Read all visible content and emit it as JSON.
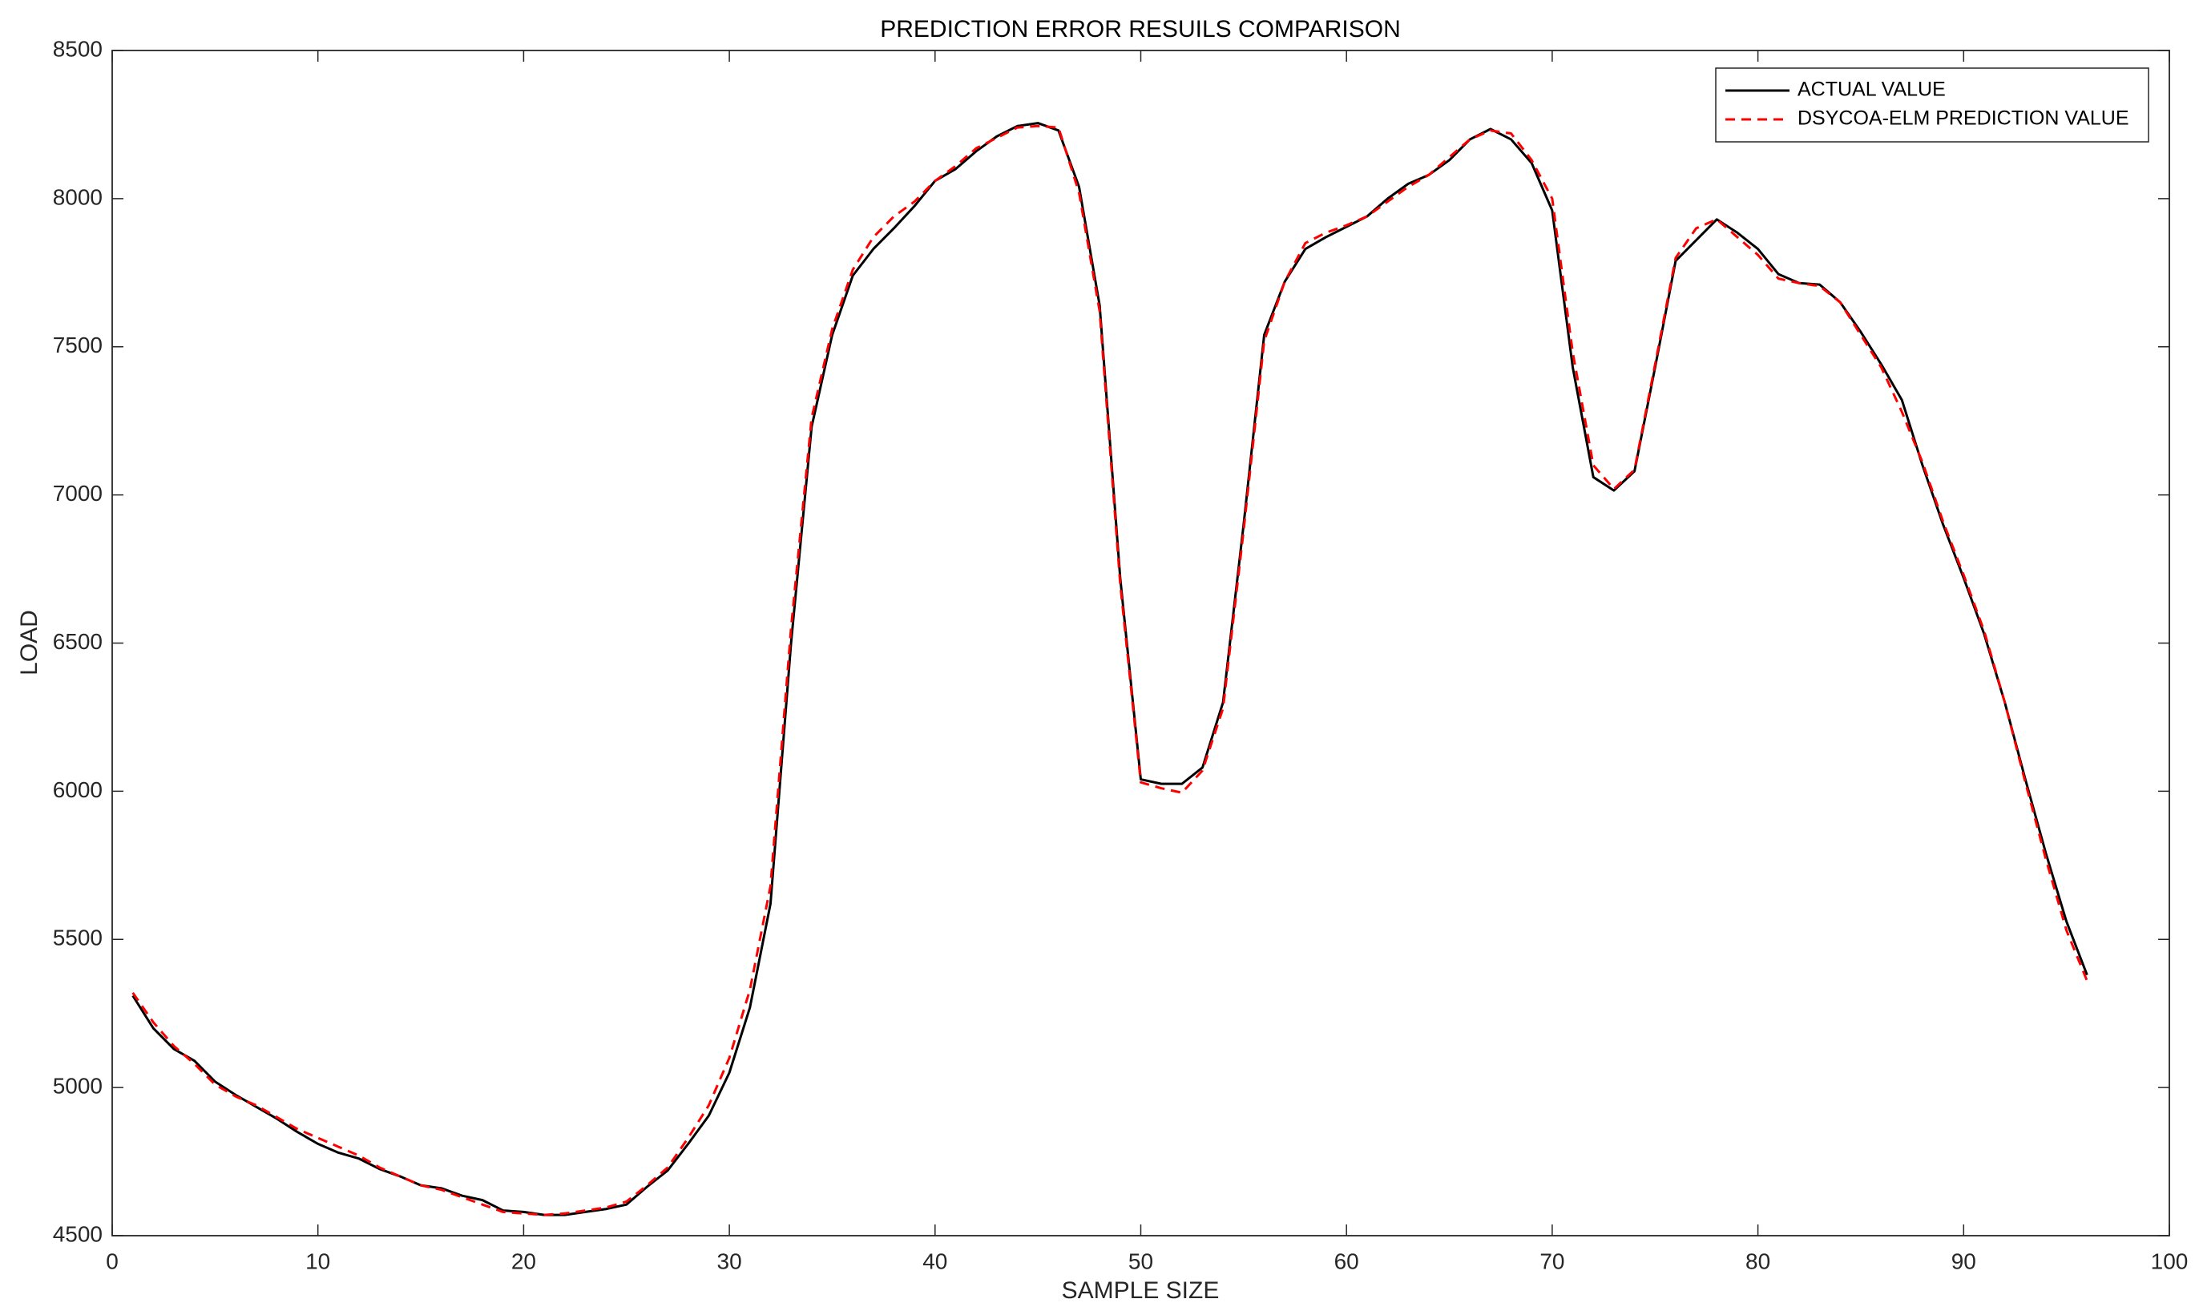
{
  "chart_data": {
    "type": "line",
    "title": "PREDICTION ERROR RESUILS COMPARISON",
    "x_label": "SAMPLE SIZE",
    "y_label": "LOAD",
    "x": [
      1,
      2,
      3,
      4,
      5,
      6,
      7,
      8,
      9,
      10,
      11,
      12,
      13,
      14,
      15,
      16,
      17,
      18,
      19,
      20,
      21,
      22,
      23,
      24,
      25,
      26,
      27,
      28,
      29,
      30,
      31,
      32,
      33,
      34,
      35,
      36,
      37,
      38,
      39,
      40,
      41,
      42,
      43,
      44,
      45,
      46,
      47,
      48,
      49,
      50,
      51,
      52,
      53,
      54,
      55,
      56,
      57,
      58,
      59,
      60,
      61,
      62,
      63,
      64,
      65,
      66,
      67,
      68,
      69,
      70,
      71,
      72,
      73,
      74,
      75,
      76,
      77,
      78,
      79,
      80,
      81,
      82,
      83,
      84,
      85,
      86,
      87,
      88,
      89,
      90,
      91,
      92,
      93,
      94,
      95,
      96
    ],
    "series": [
      {
        "name": "ACTUAL VALUE",
        "color": "#000000",
        "linestyle": "solid",
        "values": [
          5310,
          5200,
          5130,
          5090,
          5020,
          4975,
          4935,
          4895,
          4850,
          4810,
          4780,
          4760,
          4725,
          4700,
          4670,
          4660,
          4635,
          4620,
          4585,
          4580,
          4570,
          4570,
          4580,
          4590,
          4605,
          4665,
          4720,
          4810,
          4905,
          5050,
          5270,
          5620,
          6500,
          7230,
          7540,
          7740,
          7830,
          7900,
          7975,
          8060,
          8100,
          8160,
          8210,
          8245,
          8255,
          8230,
          8040,
          7640,
          6720,
          6040,
          6025,
          6025,
          6080,
          6300,
          6900,
          7540,
          7720,
          7830,
          7870,
          7905,
          7940,
          8000,
          8050,
          8080,
          8130,
          8200,
          8235,
          8200,
          8120,
          7960,
          7430,
          7060,
          7015,
          7080,
          7430,
          7790,
          7860,
          7930,
          7885,
          7830,
          7745,
          7715,
          7710,
          7650,
          7550,
          7440,
          7320,
          7100,
          6900,
          6720,
          6530,
          6300,
          6040,
          5790,
          5560,
          5380
        ]
      },
      {
        "name": "DSYCOA-ELM PREDICTION VALUE",
        "color": "#ff0000",
        "linestyle": "dashed",
        "values": [
          5320,
          5220,
          5140,
          5080,
          5010,
          4970,
          4940,
          4900,
          4860,
          4830,
          4800,
          4770,
          4730,
          4700,
          4670,
          4655,
          4630,
          4605,
          4580,
          4575,
          4570,
          4575,
          4585,
          4595,
          4615,
          4670,
          4730,
          4830,
          4940,
          5100,
          5330,
          5680,
          6550,
          7260,
          7560,
          7760,
          7870,
          7940,
          7990,
          8060,
          8110,
          8170,
          8205,
          8240,
          8245,
          8240,
          8020,
          7620,
          6700,
          6030,
          6010,
          5995,
          6070,
          6280,
          6880,
          7520,
          7720,
          7850,
          7885,
          7910,
          7940,
          7990,
          8040,
          8080,
          8140,
          8200,
          8230,
          8220,
          8130,
          8000,
          7480,
          7100,
          7020,
          7085,
          7440,
          7800,
          7900,
          7930,
          7870,
          7810,
          7730,
          7715,
          7705,
          7650,
          7540,
          7430,
          7280,
          7110,
          6910,
          6730,
          6540,
          6300,
          6030,
          5770,
          5530,
          5360
        ]
      }
    ],
    "xlim": [
      0,
      100
    ],
    "xticks": [
      0,
      10,
      20,
      30,
      40,
      50,
      60,
      70,
      80,
      90,
      100
    ],
    "ylim": [
      4500,
      8500
    ],
    "yticks": [
      4500,
      5000,
      5500,
      6000,
      6500,
      7000,
      7500,
      8000,
      8500
    ],
    "grid": false,
    "legend": "upper right"
  }
}
